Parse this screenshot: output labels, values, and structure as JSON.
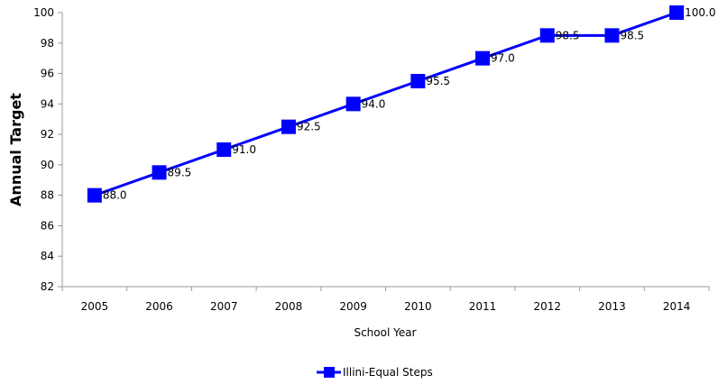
{
  "chart_data": {
    "type": "line",
    "title": "",
    "xlabel": "School Year",
    "ylabel": "Annual Target",
    "ylim": [
      82,
      100
    ],
    "yticks": [
      82,
      84,
      86,
      88,
      90,
      92,
      94,
      96,
      98,
      100
    ],
    "categories": [
      "2005",
      "2006",
      "2007",
      "2008",
      "2009",
      "2010",
      "2011",
      "2012",
      "2013",
      "2014"
    ],
    "series": [
      {
        "name": "Illini-Equal Steps",
        "values": [
          88.0,
          89.5,
          91.0,
          92.5,
          94.0,
          95.5,
          97.0,
          98.5,
          98.5,
          100.0
        ],
        "labels": [
          "88.0",
          "89.5",
          "91.0",
          "92.5",
          "94.0",
          "95.5",
          "97.0",
          "98.5",
          "98.5",
          "100.0"
        ],
        "color": "#0000ff",
        "marker": "square"
      }
    ],
    "grid": false,
    "legend": "bottom"
  }
}
